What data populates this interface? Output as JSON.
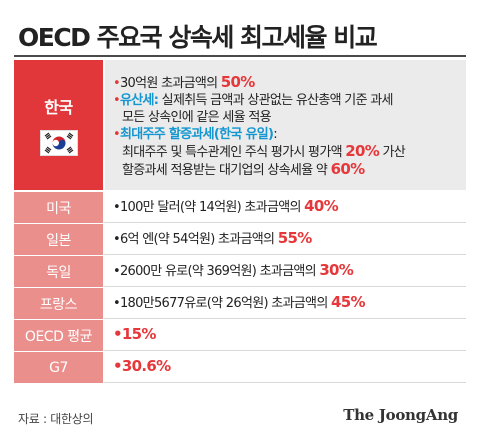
{
  "title": "OECD 주요국 상속세 최고세율 비교",
  "korea": {
    "country": "한국",
    "line1_pre": "30억원 초과금액의 ",
    "line1_pct": "50%",
    "line2_label": "유산세:",
    "line2_text": " 실제취득 금액과 상관없는 유산총액 기준 과세",
    "line3_text": "모든 상속인에 같은 세율 적용",
    "line4_label": "최대주주 할증과세(한국 유일)",
    "line4_colon": ":",
    "line5_pre": "최대주주 및 특수관계인 주식 평가시 평가액 ",
    "line5_pct": "20%",
    "line5_post": " 가산",
    "line6_pre": "할증과세 적용받는 대기업의 상속세율 약 ",
    "line6_pct": "60%"
  },
  "rows": [
    {
      "country": "미국",
      "text": "100만 달러(약 14억원) 초과금액의 ",
      "pct": "40%"
    },
    {
      "country": "일본",
      "text": "6억 엔(약 54억원) 초과금액의 ",
      "pct": "55%"
    },
    {
      "country": "독일",
      "text": "2600만 유로(약 369억원) 초과금액의 ",
      "pct": "30%"
    },
    {
      "country": "프랑스",
      "text": "180만5677유로(약 26억원) 초과금액의 ",
      "pct": "45%"
    }
  ],
  "oecd": {
    "label": "OECD 평균",
    "value": "15%"
  },
  "g7": {
    "label": "G7",
    "value": "30.6%"
  },
  "bullet": "•",
  "footer": {
    "source": "자료 : 대한상의",
    "brand": "The JoongAng"
  },
  "colors": {
    "accent": "#e6383a",
    "cyan": "#1496d0",
    "country_cell": "#ea8f8c",
    "korea_cell": "#e2373a"
  }
}
